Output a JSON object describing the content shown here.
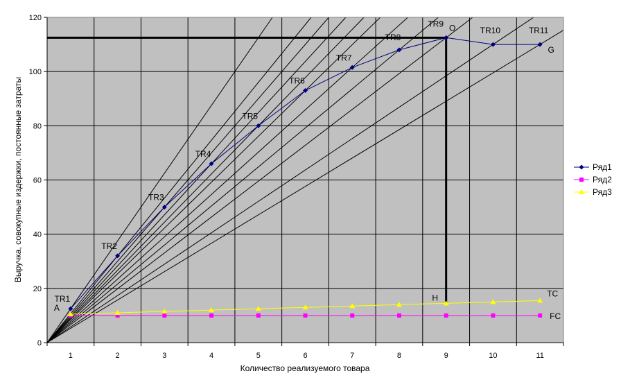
{
  "chart_data": {
    "type": "line",
    "xlabel": "Количество реализуемого товара",
    "ylabel": "Выручка, совокупные издержки, постоянные затраты",
    "categories": [
      "1",
      "2",
      "3",
      "4",
      "5",
      "6",
      "7",
      "8",
      "9",
      "10",
      "11"
    ],
    "ylim": [
      0,
      120
    ],
    "yticks": [
      0,
      20,
      40,
      60,
      80,
      100,
      120
    ],
    "grid": true,
    "legend_position": "right",
    "series": [
      {
        "name": "Ряд1",
        "color": "#000080",
        "marker": "diamond",
        "values": [
          12.5,
          32,
          50,
          66,
          80,
          93,
          101.5,
          108,
          112.5,
          110,
          110
        ]
      },
      {
        "name": "Ряд2",
        "color": "#ff00ff",
        "marker": "square",
        "values": [
          10,
          10,
          10,
          10,
          10,
          10,
          10,
          10,
          10,
          10,
          10
        ]
      },
      {
        "name": "Ряд3",
        "color": "#ffff00",
        "marker": "triangle",
        "values": [
          10.5,
          11,
          11.5,
          12,
          12.5,
          13,
          13.5,
          14,
          14.5,
          15,
          15.5
        ]
      }
    ],
    "tr_labels": [
      "TR1",
      "TR2",
      "TR3",
      "TR4",
      "TR5",
      "TR6",
      "TR7",
      "TR8",
      "TR9",
      "TR10",
      "TR11"
    ],
    "point_labels": {
      "A": "A",
      "O": "O",
      "G": "G",
      "H": "H",
      "TC": "TC",
      "FC": "FC"
    },
    "guide_point": {
      "x": 9,
      "y": 112.5
    }
  }
}
